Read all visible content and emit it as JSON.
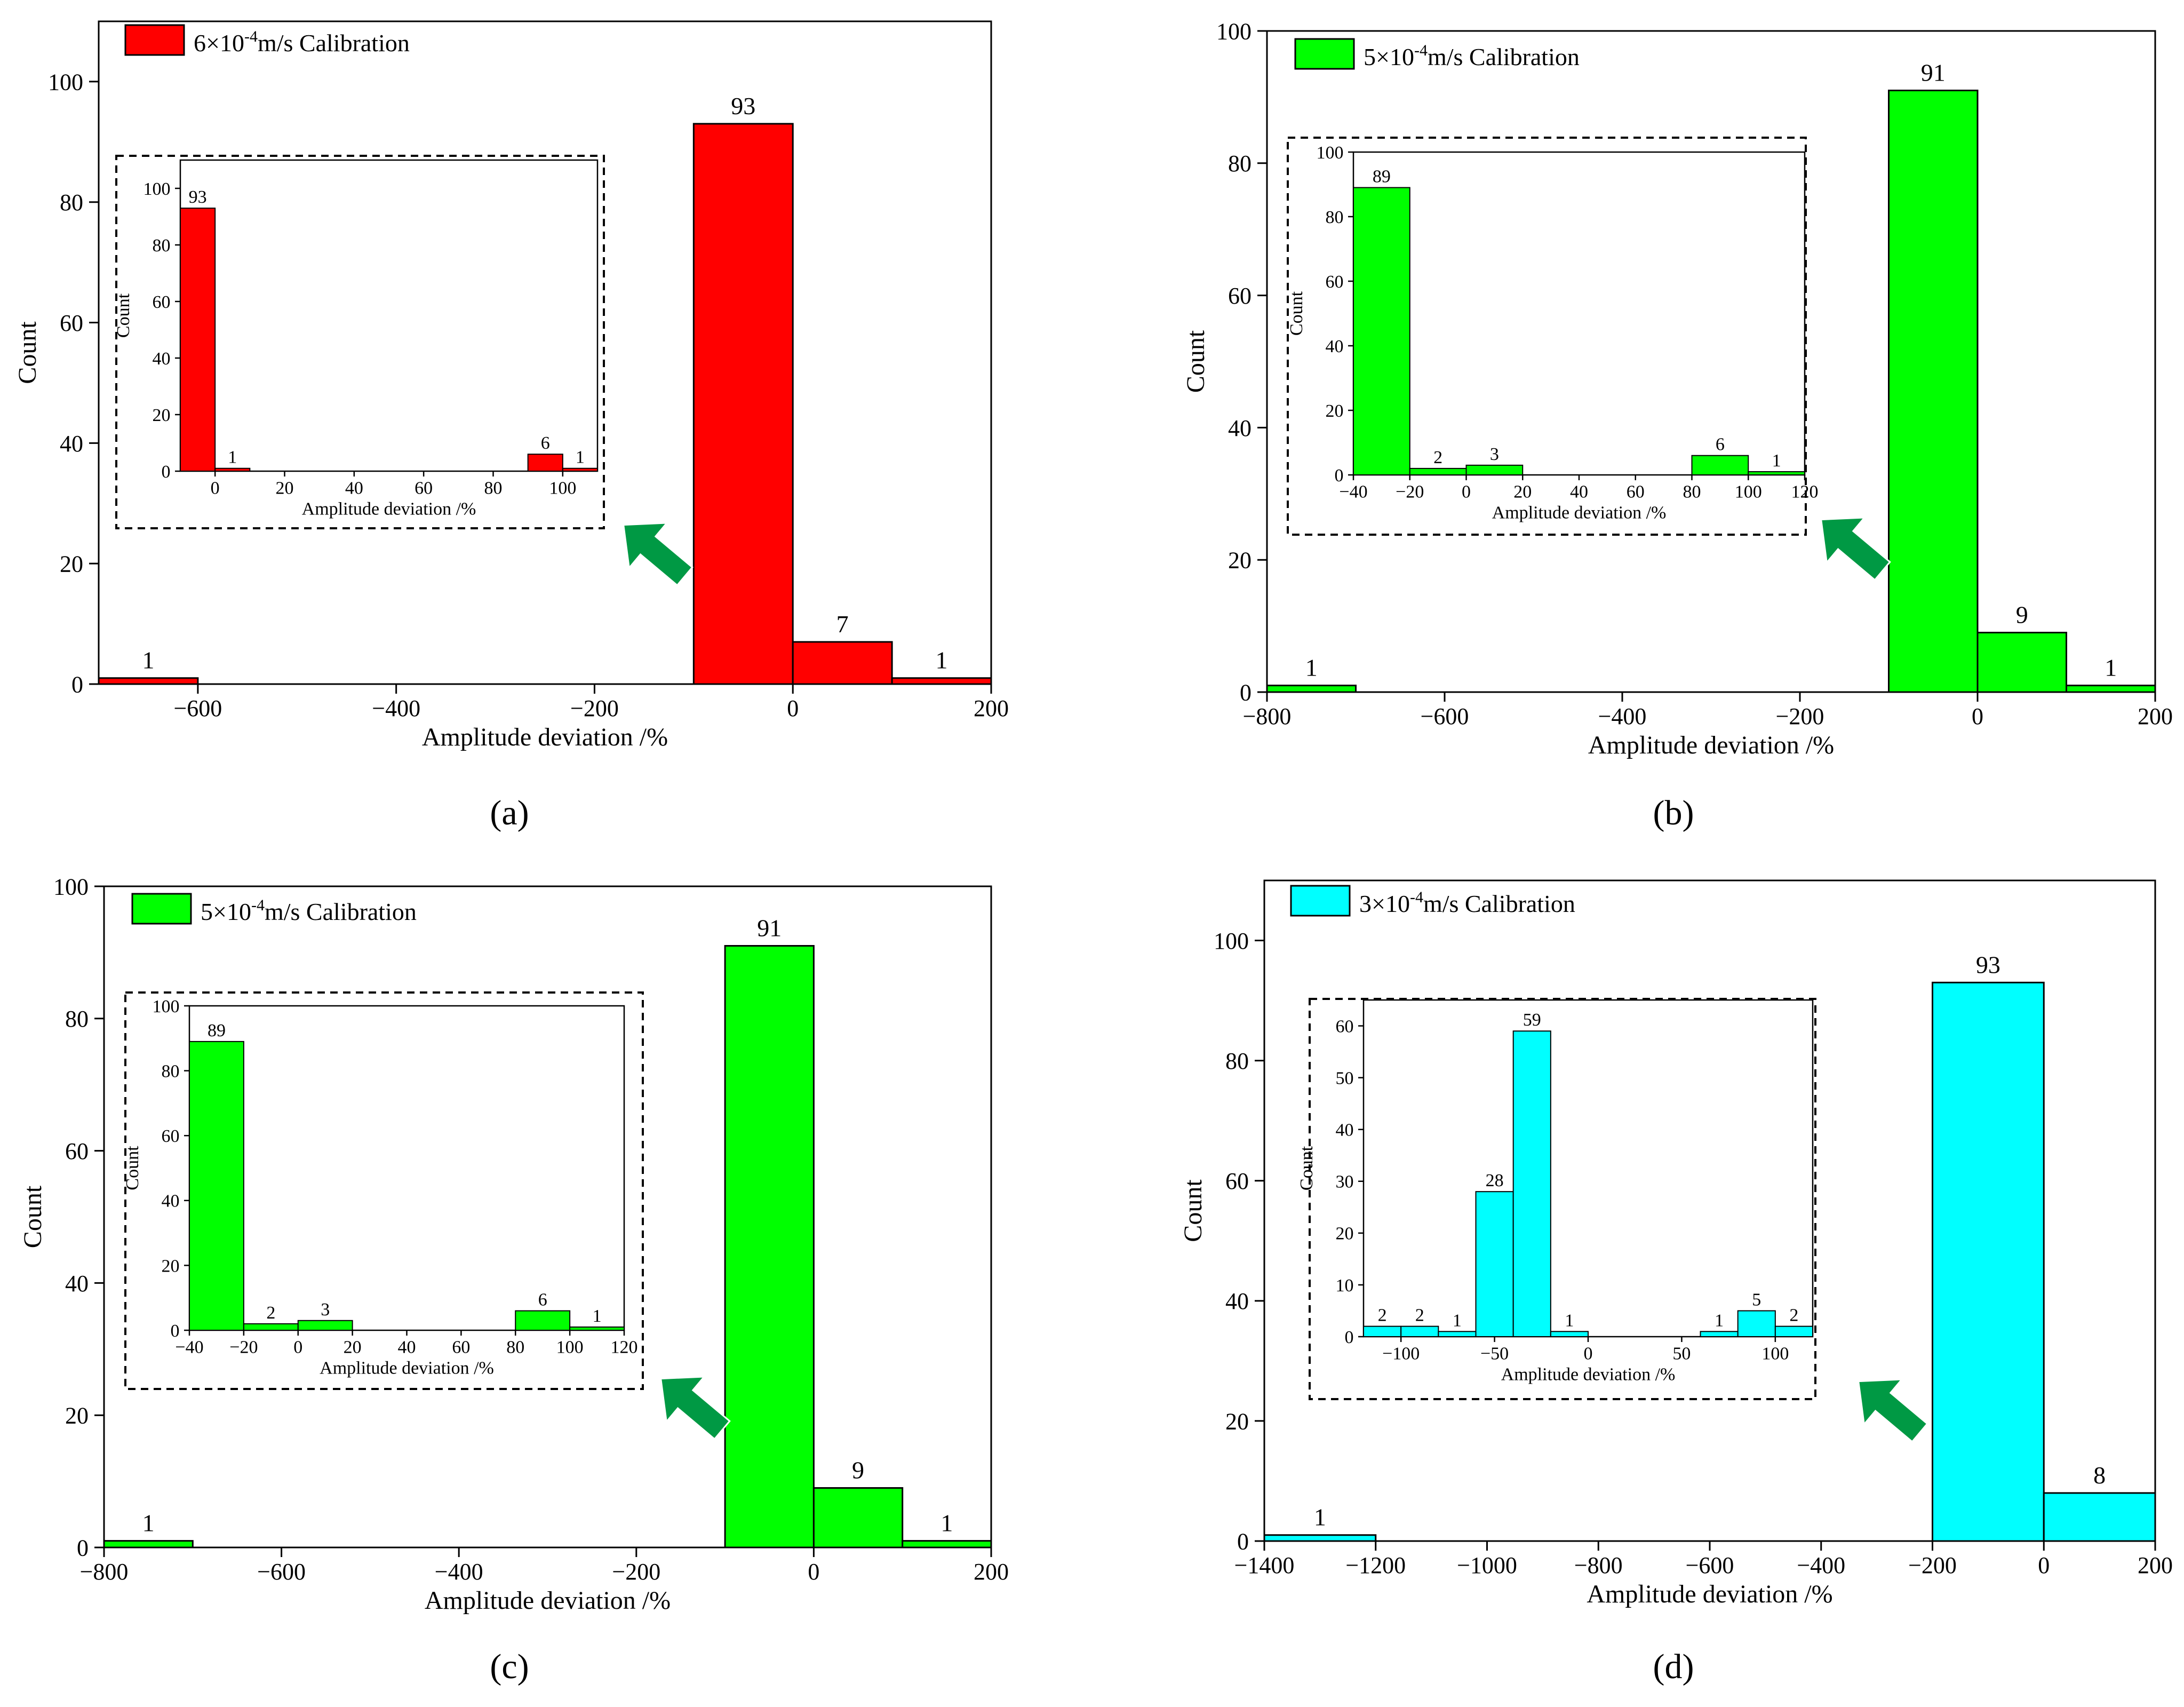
{
  "colors": {
    "red": "#ff0000",
    "green": "#00ff00",
    "cyan": "#00ffff",
    "arrow": "#009944",
    "axis": "#000000"
  },
  "chart_data": [
    {
      "id": "a",
      "panel_label": "(a)",
      "type": "bar",
      "color_key": "red",
      "legend": {
        "prefix": "6×10",
        "exp": "-4",
        "suffix": "m/s Calibration"
      },
      "xlabel": "Amplitude deviation /%",
      "ylabel": "Count",
      "xlim": [
        -700,
        200
      ],
      "ylim": [
        0,
        110
      ],
      "xticks": [
        -600,
        -400,
        -200,
        0,
        200
      ],
      "yticks": [
        0,
        20,
        40,
        60,
        80,
        100
      ],
      "bins": [
        {
          "x0": -700,
          "x1": -600,
          "value": 1,
          "label": "1"
        },
        {
          "x0": -100,
          "x1": 0,
          "value": 93,
          "label": "93"
        },
        {
          "x0": 0,
          "x1": 100,
          "value": 7,
          "label": "7"
        },
        {
          "x0": 100,
          "x1": 200,
          "value": 1,
          "label": "1"
        }
      ],
      "inset": {
        "xlabel": "Amplitude deviation /%",
        "ylabel": "Count",
        "xlim": [
          -10,
          110
        ],
        "ylim": [
          0,
          110
        ],
        "xticks": [
          0,
          20,
          40,
          60,
          80,
          100
        ],
        "yticks": [
          0,
          20,
          40,
          60,
          80,
          100
        ],
        "bins": [
          {
            "x0": -10,
            "x1": 0,
            "value": 93,
            "label": "93"
          },
          {
            "x0": 0,
            "x1": 10,
            "value": 1,
            "label": "1"
          },
          {
            "x0": 90,
            "x1": 100,
            "value": 6,
            "label": "6"
          },
          {
            "x0": 100,
            "x1": 110,
            "value": 1,
            "label": "1"
          }
        ]
      }
    },
    {
      "id": "b",
      "panel_label": "(b)",
      "type": "bar",
      "color_key": "green",
      "legend": {
        "prefix": "5×10",
        "exp": "-4",
        "suffix": "m/s Calibration"
      },
      "xlabel": "Amplitude deviation /%",
      "ylabel": "Count",
      "xlim": [
        -800,
        200
      ],
      "ylim": [
        0,
        100
      ],
      "xticks": [
        -800,
        -600,
        -400,
        -200,
        0,
        200
      ],
      "yticks": [
        0,
        20,
        40,
        60,
        80,
        100
      ],
      "bins": [
        {
          "x0": -800,
          "x1": -700,
          "value": 1,
          "label": "1"
        },
        {
          "x0": -100,
          "x1": 0,
          "value": 91,
          "label": "91"
        },
        {
          "x0": 0,
          "x1": 100,
          "value": 9,
          "label": "9"
        },
        {
          "x0": 100,
          "x1": 200,
          "value": 1,
          "label": "1"
        }
      ],
      "inset": {
        "xlabel": "Amplitude deviation /%",
        "ylabel": "Count",
        "xlim": [
          -40,
          120
        ],
        "ylim": [
          0,
          100
        ],
        "xticks": [
          -40,
          -20,
          0,
          20,
          40,
          60,
          80,
          100,
          120
        ],
        "yticks": [
          0,
          20,
          40,
          60,
          80,
          100
        ],
        "bins": [
          {
            "x0": -40,
            "x1": -20,
            "value": 89,
            "label": "89"
          },
          {
            "x0": -20,
            "x1": 0,
            "value": 2,
            "label": "2"
          },
          {
            "x0": 0,
            "x1": 20,
            "value": 3,
            "label": "3"
          },
          {
            "x0": 80,
            "x1": 100,
            "value": 6,
            "label": "6"
          },
          {
            "x0": 100,
            "x1": 120,
            "value": 1,
            "label": "1"
          }
        ]
      }
    },
    {
      "id": "c",
      "panel_label": "(c)",
      "type": "bar",
      "color_key": "green",
      "legend": {
        "prefix": "5×10",
        "exp": "-4",
        "suffix": "m/s Calibration"
      },
      "xlabel": "Amplitude deviation /%",
      "ylabel": "Count",
      "xlim": [
        -800,
        200
      ],
      "ylim": [
        0,
        100
      ],
      "xticks": [
        -800,
        -600,
        -400,
        -200,
        0,
        200
      ],
      "yticks": [
        0,
        20,
        40,
        60,
        80,
        100
      ],
      "bins": [
        {
          "x0": -800,
          "x1": -700,
          "value": 1,
          "label": "1"
        },
        {
          "x0": -100,
          "x1": 0,
          "value": 91,
          "label": "91"
        },
        {
          "x0": 0,
          "x1": 100,
          "value": 9,
          "label": "9"
        },
        {
          "x0": 100,
          "x1": 200,
          "value": 1,
          "label": "1"
        }
      ],
      "inset": {
        "xlabel": "Amplitude deviation /%",
        "ylabel": "Count",
        "xlim": [
          -40,
          120
        ],
        "ylim": [
          0,
          100
        ],
        "xticks": [
          -40,
          -20,
          0,
          20,
          40,
          60,
          80,
          100,
          120
        ],
        "yticks": [
          0,
          20,
          40,
          60,
          80,
          100
        ],
        "bins": [
          {
            "x0": -40,
            "x1": -20,
            "value": 89,
            "label": "89"
          },
          {
            "x0": -20,
            "x1": 0,
            "value": 2,
            "label": "2"
          },
          {
            "x0": 0,
            "x1": 20,
            "value": 3,
            "label": "3"
          },
          {
            "x0": 80,
            "x1": 100,
            "value": 6,
            "label": "6"
          },
          {
            "x0": 100,
            "x1": 120,
            "value": 1,
            "label": "1"
          }
        ]
      }
    },
    {
      "id": "d",
      "panel_label": "(d)",
      "type": "bar",
      "color_key": "cyan",
      "legend": {
        "prefix": "3×10",
        "exp": "-4",
        "suffix": "m/s Calibration"
      },
      "xlabel": "Amplitude deviation /%",
      "ylabel": "Count",
      "xlim": [
        -1400,
        200
      ],
      "ylim": [
        0,
        110
      ],
      "xticks": [
        -1400,
        -1200,
        -1000,
        -800,
        -600,
        -400,
        -200,
        0,
        200
      ],
      "yticks": [
        0,
        20,
        40,
        60,
        80,
        100
      ],
      "bins": [
        {
          "x0": -1400,
          "x1": -1200,
          "value": 1,
          "label": "1"
        },
        {
          "x0": -200,
          "x1": 0,
          "value": 93,
          "label": "93"
        },
        {
          "x0": 0,
          "x1": 200,
          "value": 8,
          "label": "8"
        }
      ],
      "inset": {
        "xlabel": "Amplitude deviation /%",
        "ylabel": "Count",
        "xlim": [
          -120,
          120
        ],
        "ylim": [
          0,
          65
        ],
        "xticks": [
          -100,
          -50,
          0,
          50,
          100
        ],
        "yticks": [
          0,
          10,
          20,
          30,
          40,
          50,
          60
        ],
        "bins": [
          {
            "x0": -120,
            "x1": -100,
            "value": 2,
            "label": "2"
          },
          {
            "x0": -100,
            "x1": -80,
            "value": 2,
            "label": "2"
          },
          {
            "x0": -80,
            "x1": -60,
            "value": 1,
            "label": "1"
          },
          {
            "x0": -60,
            "x1": -40,
            "value": 28,
            "label": "28"
          },
          {
            "x0": -40,
            "x1": -20,
            "value": 59,
            "label": "59"
          },
          {
            "x0": -20,
            "x1": 0,
            "value": 1,
            "label": "1"
          },
          {
            "x0": 60,
            "x1": 80,
            "value": 1,
            "label": "1"
          },
          {
            "x0": 80,
            "x1": 100,
            "value": 5,
            "label": "5"
          },
          {
            "x0": 100,
            "x1": 120,
            "value": 2,
            "label": "2"
          }
        ]
      }
    }
  ]
}
